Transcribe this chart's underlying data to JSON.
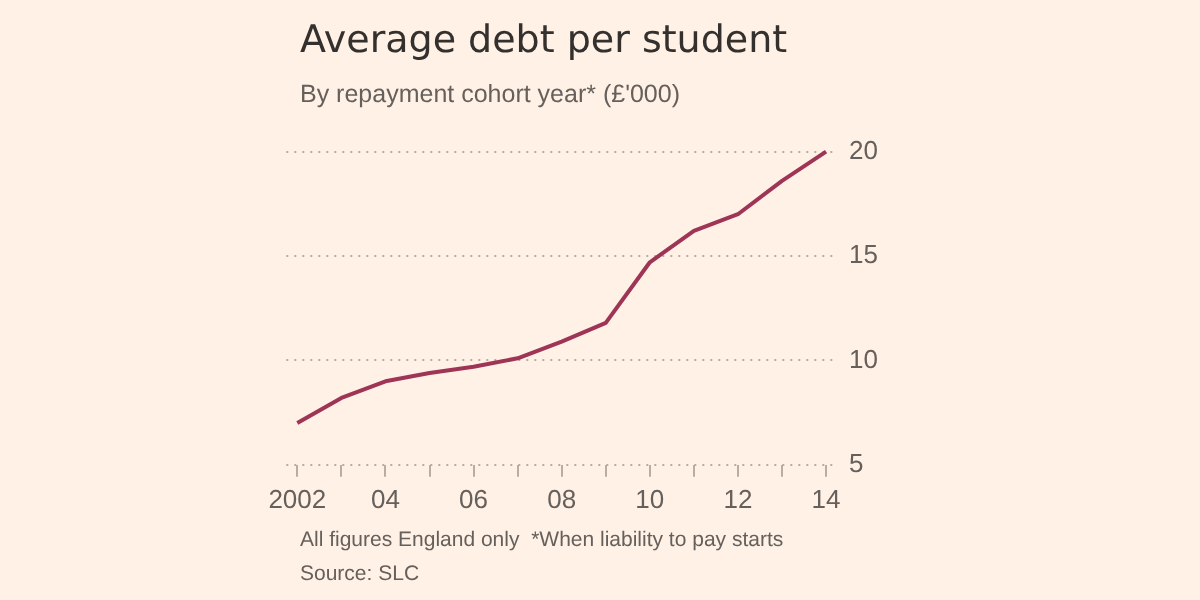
{
  "chart_data": {
    "type": "line",
    "title": "Average debt per student",
    "subtitle": "By repayment cohort year* (£'000)",
    "x": [
      2002,
      2003,
      2004,
      2005,
      2006,
      2007,
      2008,
      2009,
      2010,
      2011,
      2012,
      2013,
      2014
    ],
    "series": [
      {
        "color": "#9e3556",
        "values": [
          7.0,
          8.2,
          9.0,
          9.4,
          9.7,
          10.1,
          10.9,
          11.8,
          14.7,
          16.2,
          17.0,
          18.6,
          20.0
        ]
      }
    ],
    "xlim": [
      2001.75,
      2014.25
    ],
    "xticks": [
      {
        "value": 2002,
        "label": "2002"
      },
      {
        "value": 2003,
        "label": null
      },
      {
        "value": 2004,
        "label": "04"
      },
      {
        "value": 2005,
        "label": null
      },
      {
        "value": 2006,
        "label": "06"
      },
      {
        "value": 2007,
        "label": null
      },
      {
        "value": 2008,
        "label": "08"
      },
      {
        "value": 2009,
        "label": null
      },
      {
        "value": 2010,
        "label": "10"
      },
      {
        "value": 2011,
        "label": null
      },
      {
        "value": 2012,
        "label": "12"
      },
      {
        "value": 2013,
        "label": null
      },
      {
        "value": 2014,
        "label": "14"
      }
    ],
    "ylim": [
      5,
      20
    ],
    "yticks": [
      5,
      10,
      15,
      20
    ],
    "grid": "y",
    "legend": false,
    "marker": "none",
    "line_style": "solid",
    "annotations": [
      "All figures England only  *When liability to pay starts",
      "Source: SLC"
    ]
  }
}
